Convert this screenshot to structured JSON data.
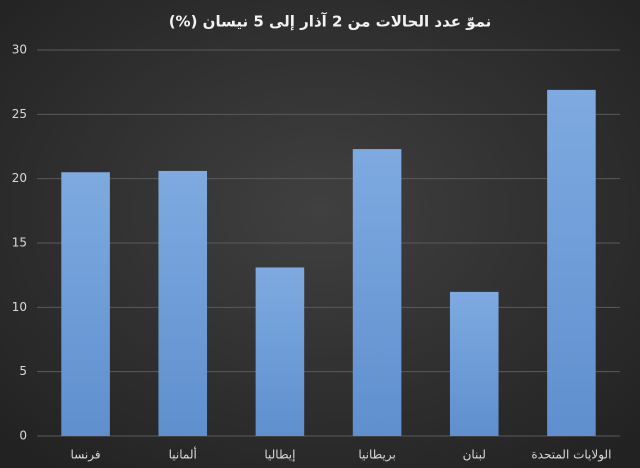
{
  "chart_data": {
    "type": "bar",
    "title": "نموّ عدد الحالات من 2 آذار إلى 5 نيسان (%)",
    "categories": [
      "فرنسا",
      "ألمانيا",
      "إيطاليا",
      "بريطانيا",
      "لبنان",
      "الولايات المتحدة"
    ],
    "values": [
      20.5,
      20.6,
      13.1,
      22.3,
      11.2,
      26.9
    ],
    "color": "#6e9fda",
    "ylim": [
      0,
      30
    ],
    "yticks": [
      0,
      5,
      10,
      15,
      20,
      25,
      30
    ],
    "grid": true
  }
}
